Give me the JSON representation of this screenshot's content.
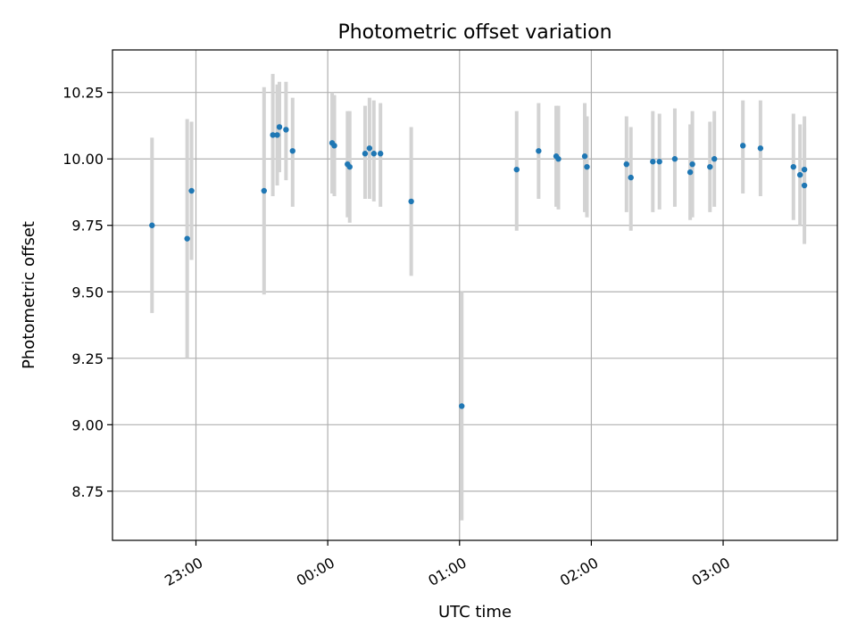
{
  "chart_data": {
    "type": "scatter",
    "title": "Photometric offset variation",
    "xlabel": "UTC time",
    "ylabel": "Photometric offset",
    "x_unit": "UTC time (HH:MM)",
    "x_ticks": [
      "23:00",
      "00:00",
      "01:00",
      "02:00",
      "03:00"
    ],
    "x_tick_minutes": [
      1380,
      1440,
      1500,
      1560,
      1620
    ],
    "xlim": [
      "22:22",
      "03:52"
    ],
    "y_ticks": [
      "8.75",
      "9.00",
      "9.25",
      "9.50",
      "9.75",
      "10.00",
      "10.25"
    ],
    "ylim": [
      8.565,
      10.41
    ],
    "grid": true,
    "colors": {
      "point": "#1f77b4",
      "errorbar": "#d3d3d3",
      "grid": "#b0b0b0"
    },
    "series": [
      {
        "points": [
          {
            "t": "22:40",
            "y": 9.75,
            "ylow": 9.42,
            "yhigh": 10.08
          },
          {
            "t": "22:56",
            "y": 9.7,
            "ylow": 9.25,
            "yhigh": 10.15
          },
          {
            "t": "22:58",
            "y": 9.88,
            "ylow": 9.62,
            "yhigh": 10.14
          },
          {
            "t": "23:31",
            "y": 9.88,
            "ylow": 9.49,
            "yhigh": 10.27
          },
          {
            "t": "23:35",
            "y": 10.09,
            "ylow": 9.86,
            "yhigh": 10.32
          },
          {
            "t": "23:37",
            "y": 10.09,
            "ylow": 9.9,
            "yhigh": 10.28
          },
          {
            "t": "23:38",
            "y": 10.12,
            "ylow": 9.95,
            "yhigh": 10.29
          },
          {
            "t": "23:41",
            "y": 10.11,
            "ylow": 9.92,
            "yhigh": 10.29
          },
          {
            "t": "23:44",
            "y": 10.03,
            "ylow": 9.82,
            "yhigh": 10.23
          },
          {
            "t": "00:02",
            "y": 10.06,
            "ylow": 9.87,
            "yhigh": 10.25
          },
          {
            "t": "00:03",
            "y": 10.05,
            "ylow": 9.86,
            "yhigh": 10.24
          },
          {
            "t": "00:09",
            "y": 9.98,
            "ylow": 9.78,
            "yhigh": 10.18
          },
          {
            "t": "00:10",
            "y": 9.97,
            "ylow": 9.76,
            "yhigh": 10.18
          },
          {
            "t": "00:17",
            "y": 10.02,
            "ylow": 9.85,
            "yhigh": 10.2
          },
          {
            "t": "00:19",
            "y": 10.04,
            "ylow": 9.85,
            "yhigh": 10.23
          },
          {
            "t": "00:21",
            "y": 10.02,
            "ylow": 9.84,
            "yhigh": 10.22
          },
          {
            "t": "00:24",
            "y": 10.02,
            "ylow": 9.82,
            "yhigh": 10.21
          },
          {
            "t": "00:38",
            "y": 9.84,
            "ylow": 9.56,
            "yhigh": 10.12
          },
          {
            "t": "01:01",
            "y": 9.07,
            "ylow": 8.64,
            "yhigh": 9.5
          },
          {
            "t": "01:26",
            "y": 9.96,
            "ylow": 9.73,
            "yhigh": 10.18
          },
          {
            "t": "01:36",
            "y": 10.03,
            "ylow": 9.85,
            "yhigh": 10.21
          },
          {
            "t": "01:44",
            "y": 10.01,
            "ylow": 9.82,
            "yhigh": 10.2
          },
          {
            "t": "01:45",
            "y": 10.0,
            "ylow": 9.81,
            "yhigh": 10.2
          },
          {
            "t": "01:57",
            "y": 10.01,
            "ylow": 9.8,
            "yhigh": 10.21
          },
          {
            "t": "01:58",
            "y": 9.97,
            "ylow": 9.78,
            "yhigh": 10.16
          },
          {
            "t": "02:16",
            "y": 9.98,
            "ylow": 9.8,
            "yhigh": 10.16
          },
          {
            "t": "02:18",
            "y": 9.93,
            "ylow": 9.73,
            "yhigh": 10.12
          },
          {
            "t": "02:28",
            "y": 9.99,
            "ylow": 9.8,
            "yhigh": 10.18
          },
          {
            "t": "02:31",
            "y": 9.99,
            "ylow": 9.81,
            "yhigh": 10.17
          },
          {
            "t": "02:38",
            "y": 10.0,
            "ylow": 9.82,
            "yhigh": 10.19
          },
          {
            "t": "02:45",
            "y": 9.95,
            "ylow": 9.77,
            "yhigh": 10.13
          },
          {
            "t": "02:46",
            "y": 9.98,
            "ylow": 9.78,
            "yhigh": 10.18
          },
          {
            "t": "02:54",
            "y": 9.97,
            "ylow": 9.8,
            "yhigh": 10.14
          },
          {
            "t": "02:56",
            "y": 10.0,
            "ylow": 9.82,
            "yhigh": 10.18
          },
          {
            "t": "03:09",
            "y": 10.05,
            "ylow": 9.87,
            "yhigh": 10.22
          },
          {
            "t": "03:17",
            "y": 10.04,
            "ylow": 9.86,
            "yhigh": 10.22
          },
          {
            "t": "03:32",
            "y": 9.97,
            "ylow": 9.77,
            "yhigh": 10.17
          },
          {
            "t": "03:35",
            "y": 9.94,
            "ylow": 9.75,
            "yhigh": 10.13
          },
          {
            "t": "03:37",
            "y": 9.9,
            "ylow": 9.68,
            "yhigh": 10.12
          },
          {
            "t": "03:37",
            "y": 9.96,
            "ylow": 9.76,
            "yhigh": 10.16
          }
        ]
      }
    ]
  }
}
